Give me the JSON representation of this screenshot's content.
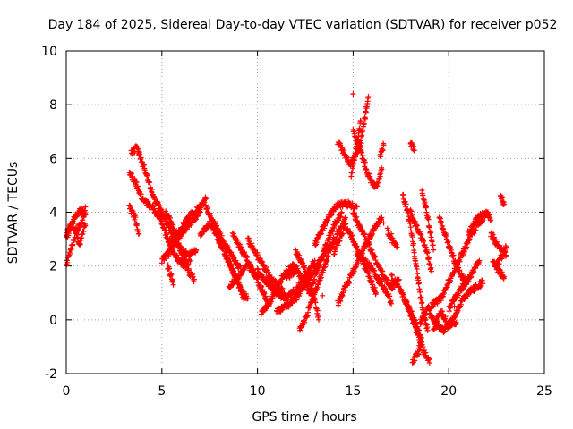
{
  "chart_data": {
    "type": "scatter",
    "title": "Day 184 of 2025, Sidereal Day-to-day VTEC variation (SDTVAR) for receiver p052",
    "xlabel": "GPS time / hours",
    "ylabel": "SDTVAR / TECUs",
    "xlim": [
      0,
      25
    ],
    "ylim": [
      -2,
      10
    ],
    "xticks": [
      0,
      5,
      10,
      15,
      20,
      25
    ],
    "yticks": [
      -2,
      0,
      2,
      4,
      6,
      8,
      10
    ],
    "grid": true,
    "marker": "+",
    "marker_color": "#ff0000",
    "tracks": [
      [
        [
          0.0,
          2.0
        ],
        [
          0.3,
          2.8
        ],
        [
          0.6,
          3.4
        ],
        [
          0.9,
          3.8
        ],
        [
          1.0,
          4.2
        ]
      ],
      [
        [
          0.0,
          3.2
        ],
        [
          0.3,
          3.6
        ],
        [
          0.5,
          3.3
        ],
        [
          0.7,
          2.8
        ],
        [
          1.0,
          3.5
        ]
      ],
      [
        [
          0.0,
          3.0
        ],
        [
          0.4,
          3.8
        ],
        [
          0.8,
          4.1
        ],
        [
          1.0,
          3.9
        ]
      ],
      [
        [
          3.3,
          4.2
        ],
        [
          3.6,
          3.8
        ],
        [
          3.8,
          3.2
        ]
      ],
      [
        [
          3.4,
          6.2
        ],
        [
          3.7,
          6.4
        ],
        [
          4.0,
          5.8
        ],
        [
          4.3,
          5.2
        ],
        [
          4.6,
          4.5
        ],
        [
          5.0,
          4.0
        ],
        [
          5.3,
          3.5
        ],
        [
          5.6,
          3.0
        ],
        [
          6.0,
          2.6
        ],
        [
          6.4,
          2.4
        ],
        [
          6.8,
          2.6
        ]
      ],
      [
        [
          3.3,
          5.5
        ],
        [
          3.7,
          5.0
        ],
        [
          4.0,
          4.5
        ],
        [
          4.4,
          4.2
        ]
      ],
      [
        [
          4.5,
          4.2
        ],
        [
          4.9,
          3.8
        ],
        [
          5.2,
          3.2
        ],
        [
          5.5,
          2.7
        ],
        [
          5.8,
          2.3
        ],
        [
          6.2,
          2.0
        ],
        [
          6.5,
          2.2
        ]
      ],
      [
        [
          5.3,
          2.0
        ],
        [
          5.5,
          1.6
        ],
        [
          5.6,
          1.3
        ]
      ],
      [
        [
          5.2,
          4.0
        ],
        [
          5.5,
          3.6
        ],
        [
          5.8,
          3.0
        ],
        [
          6.1,
          2.4
        ],
        [
          6.4,
          1.8
        ],
        [
          6.7,
          1.5
        ]
      ],
      [
        [
          5.5,
          3.0
        ],
        [
          6.0,
          3.4
        ],
        [
          6.5,
          3.9
        ],
        [
          7.0,
          4.2
        ],
        [
          7.3,
          4.5
        ]
      ],
      [
        [
          5.0,
          2.2
        ],
        [
          5.5,
          2.6
        ],
        [
          6.0,
          3.2
        ],
        [
          6.5,
          3.6
        ],
        [
          7.0,
          4.0
        ]
      ],
      [
        [
          7.3,
          4.2
        ],
        [
          7.6,
          3.8
        ],
        [
          8.0,
          3.2
        ],
        [
          8.4,
          2.7
        ],
        [
          8.8,
          2.2
        ],
        [
          9.2,
          1.8
        ]
      ],
      [
        [
          7.0,
          3.2
        ],
        [
          7.5,
          3.6
        ],
        [
          7.8,
          3.2
        ],
        [
          8.2,
          2.6
        ],
        [
          8.6,
          2.0
        ],
        [
          9.0,
          1.4
        ],
        [
          9.3,
          0.8
        ]
      ],
      [
        [
          8.3,
          2.5
        ],
        [
          8.6,
          2.0
        ],
        [
          8.9,
          1.5
        ],
        [
          9.2,
          1.0
        ],
        [
          9.5,
          0.8
        ]
      ],
      [
        [
          8.7,
          3.2
        ],
        [
          9.1,
          2.7
        ],
        [
          9.5,
          2.2
        ],
        [
          9.9,
          1.6
        ],
        [
          10.3,
          1.0
        ],
        [
          10.6,
          0.5
        ]
      ],
      [
        [
          9.5,
          3.0
        ],
        [
          9.9,
          2.5
        ],
        [
          10.3,
          2.0
        ],
        [
          10.7,
          1.6
        ],
        [
          11.0,
          1.3
        ],
        [
          11.4,
          1.0
        ]
      ],
      [
        [
          10.0,
          1.8
        ],
        [
          10.5,
          1.4
        ],
        [
          11.0,
          1.0
        ],
        [
          11.5,
          0.8
        ],
        [
          12.0,
          1.1
        ],
        [
          12.5,
          1.6
        ],
        [
          13.0,
          2.2
        ]
      ],
      [
        [
          8.5,
          1.2
        ],
        [
          9.0,
          1.6
        ],
        [
          9.5,
          2.0
        ],
        [
          10.0,
          1.6
        ]
      ],
      [
        [
          10.2,
          0.3
        ],
        [
          10.6,
          0.6
        ],
        [
          11.0,
          1.2
        ],
        [
          11.4,
          1.7
        ],
        [
          11.8,
          2.0
        ],
        [
          12.1,
          1.9
        ]
      ],
      [
        [
          11.0,
          0.3
        ],
        [
          11.5,
          0.5
        ],
        [
          12.0,
          0.8
        ],
        [
          12.5,
          1.3
        ],
        [
          13.0,
          1.9
        ],
        [
          13.5,
          2.5
        ],
        [
          14.0,
          3.0
        ]
      ],
      [
        [
          11.5,
          1.6
        ],
        [
          12.0,
          1.8
        ],
        [
          12.3,
          1.6
        ],
        [
          12.6,
          1.2
        ],
        [
          12.9,
          0.8
        ]
      ],
      [
        [
          12.0,
          2.5
        ],
        [
          12.3,
          2.2
        ],
        [
          12.6,
          1.6
        ],
        [
          12.9,
          1.0
        ],
        [
          13.1,
          0.4
        ],
        [
          13.2,
          0.0
        ]
      ],
      [
        [
          12.2,
          -0.4
        ],
        [
          12.6,
          0.2
        ],
        [
          13.0,
          1.0
        ],
        [
          13.4,
          1.8
        ],
        [
          13.8,
          2.6
        ],
        [
          14.2,
          3.2
        ],
        [
          14.6,
          3.8
        ]
      ],
      [
        [
          12.8,
          1.2
        ],
        [
          13.2,
          2.0
        ],
        [
          13.6,
          2.8
        ],
        [
          14.0,
          3.5
        ],
        [
          14.4,
          4.0
        ]
      ],
      [
        [
          13.0,
          2.8
        ],
        [
          13.4,
          3.4
        ],
        [
          13.8,
          3.9
        ],
        [
          14.2,
          4.3
        ],
        [
          14.8,
          4.3
        ],
        [
          15.2,
          4.2
        ]
      ],
      [
        [
          14.0,
          2.5
        ],
        [
          14.3,
          3.0
        ],
        [
          14.6,
          3.5
        ],
        [
          15.0,
          3.0
        ],
        [
          15.3,
          2.5
        ],
        [
          15.6,
          2.0
        ],
        [
          15.9,
          1.5
        ],
        [
          16.2,
          1.0
        ]
      ],
      [
        [
          14.2,
          0.6
        ],
        [
          14.6,
          1.2
        ],
        [
          15.0,
          1.8
        ],
        [
          15.4,
          2.4
        ],
        [
          15.8,
          3.0
        ],
        [
          16.2,
          3.5
        ],
        [
          16.5,
          3.8
        ]
      ],
      [
        [
          14.2,
          6.6
        ],
        [
          14.5,
          6.2
        ],
        [
          14.8,
          5.8
        ],
        [
          15.1,
          6.0
        ],
        [
          15.4,
          6.6
        ],
        [
          15.6,
          7.4
        ],
        [
          15.8,
          8.3
        ]
      ],
      [
        [
          15.0,
          7.0
        ],
        [
          15.3,
          6.5
        ],
        [
          15.6,
          5.8
        ],
        [
          15.9,
          5.2
        ],
        [
          16.2,
          4.9
        ],
        [
          16.5,
          5.6
        ]
      ],
      [
        [
          14.9,
          5.4
        ],
        [
          15.2,
          6.5
        ],
        [
          15.4,
          7.4
        ]
      ],
      [
        [
          15.0,
          4.0
        ],
        [
          15.4,
          3.4
        ],
        [
          15.8,
          2.8
        ],
        [
          16.2,
          2.2
        ],
        [
          16.6,
          1.6
        ],
        [
          17.0,
          1.2
        ],
        [
          17.4,
          1.5
        ]
      ],
      [
        [
          15.2,
          2.5
        ],
        [
          15.6,
          2.2
        ],
        [
          16.0,
          1.9
        ],
        [
          16.4,
          1.4
        ],
        [
          16.8,
          1.0
        ],
        [
          17.0,
          0.6
        ]
      ],
      [
        [
          16.4,
          6.0
        ],
        [
          16.6,
          6.5
        ]
      ],
      [
        [
          16.8,
          3.3
        ],
        [
          17.0,
          3.0
        ],
        [
          17.3,
          2.7
        ]
      ],
      [
        [
          17.0,
          1.6
        ],
        [
          17.4,
          1.2
        ],
        [
          17.8,
          0.6
        ],
        [
          18.1,
          0.0
        ],
        [
          18.4,
          -0.6
        ],
        [
          18.7,
          -1.2
        ],
        [
          19.0,
          -1.6
        ]
      ],
      [
        [
          17.6,
          4.6
        ],
        [
          17.9,
          3.9
        ],
        [
          18.1,
          3.0
        ],
        [
          18.3,
          2.0
        ],
        [
          18.5,
          1.0
        ],
        [
          18.7,
          0.2
        ],
        [
          18.9,
          -0.4
        ]
      ],
      [
        [
          18.0,
          6.6
        ],
        [
          18.2,
          6.3
        ]
      ],
      [
        [
          18.0,
          4.0
        ],
        [
          18.3,
          3.5
        ],
        [
          18.6,
          3.0
        ],
        [
          18.9,
          2.4
        ],
        [
          19.1,
          1.8
        ]
      ],
      [
        [
          17.7,
          0.8
        ],
        [
          18.1,
          0.2
        ],
        [
          18.4,
          -0.4
        ],
        [
          18.6,
          -0.8
        ]
      ],
      [
        [
          18.1,
          -1.6
        ],
        [
          18.4,
          -1.2
        ],
        [
          18.6,
          -0.8
        ]
      ],
      [
        [
          18.6,
          4.8
        ],
        [
          18.8,
          4.2
        ],
        [
          19.0,
          3.4
        ],
        [
          19.2,
          2.6
        ]
      ],
      [
        [
          18.5,
          -0.1
        ],
        [
          18.8,
          0.3
        ],
        [
          19.2,
          0.6
        ],
        [
          19.6,
          0.8
        ]
      ],
      [
        [
          19.0,
          0.2
        ],
        [
          19.4,
          -0.2
        ],
        [
          19.8,
          -0.4
        ],
        [
          20.2,
          0.0
        ],
        [
          20.6,
          0.6
        ],
        [
          21.0,
          1.0
        ],
        [
          21.4,
          1.2
        ],
        [
          21.8,
          1.4
        ]
      ],
      [
        [
          19.5,
          3.8
        ],
        [
          19.8,
          3.2
        ],
        [
          20.1,
          2.6
        ],
        [
          20.4,
          2.0
        ],
        [
          20.7,
          1.6
        ],
        [
          21.0,
          1.4
        ]
      ],
      [
        [
          19.6,
          0.8
        ],
        [
          20.0,
          1.4
        ],
        [
          20.4,
          2.0
        ],
        [
          20.8,
          2.6
        ],
        [
          21.2,
          3.2
        ],
        [
          21.6,
          3.6
        ],
        [
          22.0,
          4.0
        ]
      ],
      [
        [
          20.0,
          0.4
        ],
        [
          20.4,
          0.9
        ],
        [
          20.8,
          1.3
        ],
        [
          21.2,
          1.7
        ],
        [
          21.6,
          2.2
        ]
      ],
      [
        [
          19.2,
          -0.3
        ],
        [
          19.6,
          0.3
        ],
        [
          20.0,
          -0.2
        ],
        [
          20.4,
          -0.1
        ]
      ],
      [
        [
          21.0,
          3.2
        ],
        [
          21.3,
          3.6
        ],
        [
          21.7,
          3.9
        ],
        [
          22.0,
          4.0
        ],
        [
          22.2,
          3.7
        ]
      ],
      [
        [
          22.2,
          3.2
        ],
        [
          22.6,
          2.7
        ],
        [
          23.0,
          2.4
        ]
      ],
      [
        [
          22.3,
          2.2
        ],
        [
          22.6,
          1.8
        ],
        [
          22.9,
          1.6
        ]
      ],
      [
        [
          22.5,
          2.0
        ],
        [
          22.8,
          2.4
        ],
        [
          23.0,
          2.7
        ]
      ],
      [
        [
          22.7,
          4.7
        ],
        [
          22.9,
          4.3
        ]
      ]
    ],
    "isolated_points": [
      [
        15.0,
        8.4
      ],
      [
        16.6,
        3.6
      ],
      [
        17.0,
        3.2
      ],
      [
        13.4,
        0.9
      ],
      [
        20.3,
        0.5
      ]
    ]
  }
}
